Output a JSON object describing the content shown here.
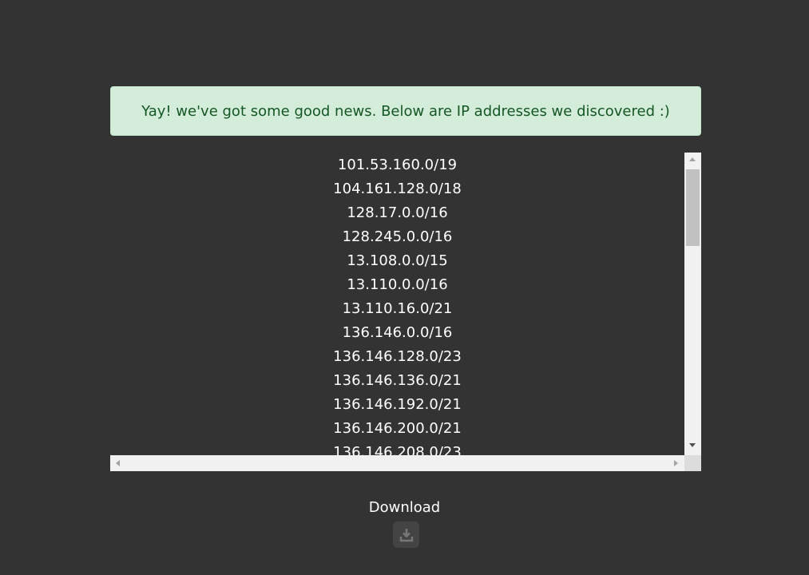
{
  "alert": {
    "message": "Yay! we've got some good news. Below are IP addresses we discovered :)"
  },
  "ip_list": [
    "101.53.160.0/19",
    "104.161.128.0/18",
    "128.17.0.0/16",
    "128.245.0.0/16",
    "13.108.0.0/15",
    "13.110.0.0/16",
    "13.110.16.0/21",
    "136.146.0.0/16",
    "136.146.128.0/23",
    "136.146.136.0/21",
    "136.146.192.0/21",
    "136.146.200.0/21",
    "136.146.208.0/23"
  ],
  "download": {
    "label": "Download",
    "icon": "download-icon"
  },
  "colors": {
    "background": "#333333",
    "alert_bg": "#d4edda",
    "alert_text": "#155724"
  }
}
